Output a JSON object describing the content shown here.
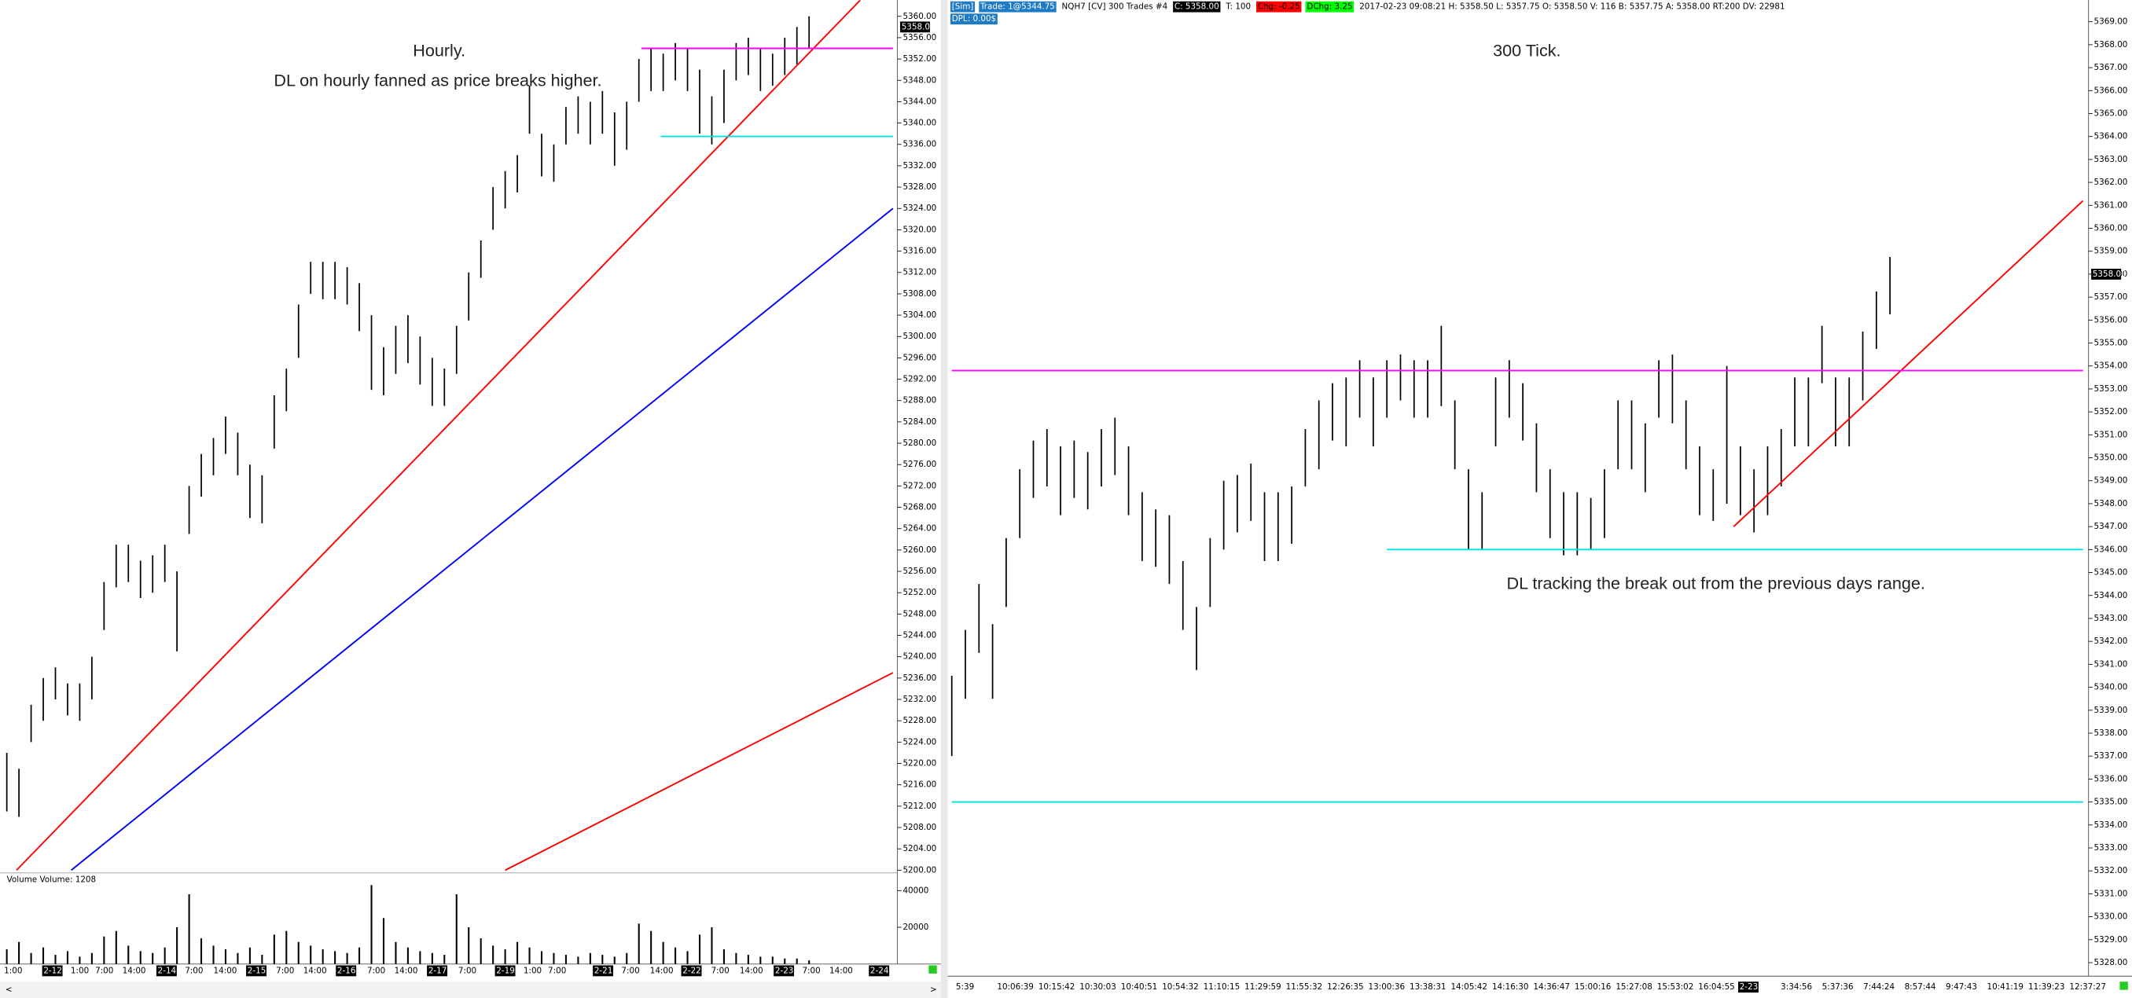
{
  "chart_data": [
    {
      "type": "ohlc",
      "title": "Hourly.",
      "subtitle": "DL on hourly fanned as price breaks higher.",
      "ylim": [
        5200,
        5360
      ],
      "yticks": [
        {
          "value": 5200,
          "label": "5200.00"
        },
        {
          "value": 5204,
          "label": "5204.00"
        },
        {
          "value": 5208,
          "label": "5208.00"
        },
        {
          "value": 5212,
          "label": "5212.00"
        },
        {
          "value": 5216,
          "label": "5216.00"
        },
        {
          "value": 5220,
          "label": "5220.00"
        },
        {
          "value": 5224,
          "label": "5224.00"
        },
        {
          "value": 5228,
          "label": "5228.00"
        },
        {
          "value": 5232,
          "label": "5232.00"
        },
        {
          "value": 5236,
          "label": "5236.00"
        },
        {
          "value": 5240,
          "label": "5240.00"
        },
        {
          "value": 5244,
          "label": "5244.00"
        },
        {
          "value": 5248,
          "label": "5248.00"
        },
        {
          "value": 5252,
          "label": "5252.00"
        },
        {
          "value": 5256,
          "label": "5256.00"
        },
        {
          "value": 5260,
          "label": "5260.00"
        },
        {
          "value": 5264,
          "label": "5264.00"
        },
        {
          "value": 5268,
          "label": "5268.00"
        },
        {
          "value": 5272,
          "label": "5272.00"
        },
        {
          "value": 5276,
          "label": "5276.00"
        },
        {
          "value": 5280,
          "label": "5280.00"
        },
        {
          "value": 5284,
          "label": "5284.00"
        },
        {
          "value": 5288,
          "label": "5288.00"
        },
        {
          "value": 5292,
          "label": "5292.00"
        },
        {
          "value": 5296,
          "label": "5296.00"
        },
        {
          "value": 5300,
          "label": "5300.00"
        },
        {
          "value": 5304,
          "label": "5304.00"
        },
        {
          "value": 5308,
          "label": "5308.00"
        },
        {
          "value": 5312,
          "label": "5312.00"
        },
        {
          "value": 5316,
          "label": "5316.00"
        },
        {
          "value": 5320,
          "label": "5320.00"
        },
        {
          "value": 5324,
          "label": "5324.00"
        },
        {
          "value": 5328,
          "label": "5328.00"
        },
        {
          "value": 5332,
          "label": "5332.00"
        },
        {
          "value": 5336,
          "label": "5336.00"
        },
        {
          "value": 5340,
          "label": "5340.00"
        },
        {
          "value": 5344,
          "label": "5344.00"
        },
        {
          "value": 5348,
          "label": "5348.00"
        },
        {
          "value": 5352,
          "label": "5352.00"
        },
        {
          "value": 5356,
          "label": "5356.00"
        },
        {
          "value": 5360,
          "label": "5360.00"
        }
      ],
      "x_ticks": [
        "1:00",
        "2-12",
        "1:00",
        "7:00",
        "14:00",
        "2-14",
        "7:00",
        "14:00",
        "2-15",
        "7:00",
        "14:00",
        "2-16",
        "7:00",
        "14:00",
        "2-17",
        "7:00",
        "2-19",
        "1:00",
        "7:00",
        "2-21",
        "7:00",
        "14:00",
        "2-22",
        "7:00",
        "14:00",
        "2-23",
        "7:00",
        "14:00",
        "2-24"
      ],
      "high": [
        5222,
        5219,
        5231,
        5236,
        5238,
        5235,
        5235,
        5240,
        5254,
        5261,
        5261,
        5258,
        5259,
        5261,
        5256,
        5272,
        5278,
        5281,
        5285,
        5282,
        5276,
        5274,
        5289,
        5294,
        5306,
        5314,
        5314,
        5314,
        5313,
        5310,
        5304,
        5298,
        5302,
        5304,
        5300,
        5296,
        5294,
        5302,
        5312,
        5318,
        5328,
        5331,
        5334,
        5347,
        5338,
        5336,
        5343,
        5345,
        5344,
        5346,
        5342,
        5344,
        5352,
        5354,
        5353,
        5355,
        5354,
        5350,
        5345,
        5350,
        5355,
        5356,
        5354,
        5353,
        5356,
        5358,
        5360
      ],
      "low": [
        5211,
        5210,
        5224,
        5228,
        5232,
        5229,
        5228,
        5232,
        5245,
        5253,
        5254,
        5251,
        5252,
        5254,
        5241,
        5263,
        5270,
        5274,
        5278,
        5274,
        5266,
        5265,
        5279,
        5286,
        5296,
        5308,
        5307,
        5307,
        5306,
        5301,
        5290,
        5289,
        5293,
        5295,
        5291,
        5287,
        5287,
        5293,
        5303,
        5311,
        5320,
        5324,
        5327,
        5338,
        5330,
        5329,
        5336,
        5338,
        5336,
        5338,
        5332,
        5335,
        5344,
        5346,
        5346,
        5348,
        5346,
        5338,
        5336,
        5340,
        5348,
        5349,
        5346,
        5347,
        5349,
        5351,
        5354
      ],
      "color": "#000000",
      "last_price": {
        "value": 5358,
        "label": "5358.00"
      },
      "trendlines": [
        {
          "color": "#ff0000",
          "x": [
            0.8,
            70.2
          ],
          "y": [
            5200,
            5363
          ]
        },
        {
          "color": "#0000ff",
          "x": [
            5.3,
            72.9
          ],
          "y": [
            5200,
            5324
          ]
        },
        {
          "color": "#ff0000",
          "x": [
            41,
            72.9
          ],
          "y": [
            5200,
            5237
          ]
        },
        {
          "color": "#ff00ff",
          "x": [
            52.2,
            72.9
          ],
          "y": [
            5354,
            5354
          ]
        },
        {
          "color": "#00e0e0",
          "x": [
            53.8,
            72.9
          ],
          "y": [
            5337.5,
            5337.5
          ]
        }
      ],
      "volume": {
        "label": "Volume  Volume: 1208",
        "vlim": [
          0,
          40000
        ],
        "vticks": [
          40000,
          20000
        ],
        "values": [
          8000,
          12000,
          6000,
          9000,
          5000,
          7000,
          4000,
          6000,
          15000,
          18000,
          10000,
          7000,
          6000,
          9000,
          20000,
          38000,
          14000,
          10000,
          8000,
          6000,
          9000,
          5000,
          16000,
          18000,
          12000,
          10000,
          8000,
          7000,
          6000,
          9000,
          43000,
          25000,
          12000,
          9000,
          7000,
          6000,
          5000,
          38000,
          20000,
          14000,
          10000,
          8000,
          12000,
          9000,
          7000,
          6000,
          5000,
          4000,
          6000,
          5000,
          4000,
          6000,
          22000,
          18000,
          12000,
          9000,
          7000,
          16000,
          20000,
          8000,
          6000,
          5000,
          4000,
          4000,
          3000,
          3000,
          2000
        ]
      }
    },
    {
      "type": "ohlc",
      "title": "300 Tick.",
      "annotation": "DL tracking the break out from the previous days range.",
      "header": [
        {
          "text": "[Sim]",
          "bg": "#1e7bc4"
        },
        {
          "text": "Trade: 1@5344.75",
          "bg": "#1e7bc4"
        },
        {
          "text": "NQH7 [CV]  300 Trades  #4"
        },
        {
          "text": "C: 5358.00",
          "bg": "#000000"
        },
        {
          "text": "T: 100"
        },
        {
          "text": "Chg: -0.25",
          "bg": "#ff0000"
        },
        {
          "text": "DChg: 3.25",
          "bg": "#00ff00"
        },
        {
          "text": "2017-02-23 09:08:21  H: 5358.50  L: 5357.75  O: 5358.50  V: 116  B: 5357.75  A: 5358.00  RT:200  DV: 22981"
        }
      ],
      "header_line2": {
        "text": "DPL: 0.00$",
        "bg": "#1e7bc4"
      },
      "ylim": [
        5328,
        5369
      ],
      "yticks": [
        {
          "value": 5328,
          "label": "5328.00"
        },
        {
          "value": 5329,
          "label": "5329.00"
        },
        {
          "value": 5330,
          "label": "5330.00"
        },
        {
          "value": 5331,
          "label": "5331.00"
        },
        {
          "value": 5332,
          "label": "5332.00"
        },
        {
          "value": 5333,
          "label": "5333.00"
        },
        {
          "value": 5334,
          "label": "5334.00"
        },
        {
          "value": 5335,
          "label": "5335.00"
        },
        {
          "value": 5336,
          "label": "5336.00"
        },
        {
          "value": 5337,
          "label": "5337.00"
        },
        {
          "value": 5338,
          "label": "5338.00"
        },
        {
          "value": 5339,
          "label": "5339.00"
        },
        {
          "value": 5340,
          "label": "5340.00"
        },
        {
          "value": 5341,
          "label": "5341.00"
        },
        {
          "value": 5342,
          "label": "5342.00"
        },
        {
          "value": 5343,
          "label": "5343.00"
        },
        {
          "value": 5344,
          "label": "5344.00"
        },
        {
          "value": 5345,
          "label": "5345.00"
        },
        {
          "value": 5346,
          "label": "5346.00"
        },
        {
          "value": 5347,
          "label": "5347.00"
        },
        {
          "value": 5348,
          "label": "5348.00"
        },
        {
          "value": 5349,
          "label": "5349.00"
        },
        {
          "value": 5350,
          "label": "5350.00"
        },
        {
          "value": 5351,
          "label": "5351.00"
        },
        {
          "value": 5352,
          "label": "5352.00"
        },
        {
          "value": 5353,
          "label": "5353.00"
        },
        {
          "value": 5354,
          "label": "5354.00"
        },
        {
          "value": 5355,
          "label": "5355.00"
        },
        {
          "value": 5356,
          "label": "5356.00"
        },
        {
          "value": 5357,
          "label": "5357.00"
        },
        {
          "value": 5358,
          "label": "5358.00"
        },
        {
          "value": 5359,
          "label": "5359.00"
        },
        {
          "value": 5360,
          "label": "5360.00"
        },
        {
          "value": 5361,
          "label": "5361.00"
        },
        {
          "value": 5362,
          "label": "5362.00"
        },
        {
          "value": 5363,
          "label": "5363.00"
        },
        {
          "value": 5364,
          "label": "5364.00"
        },
        {
          "value": 5365,
          "label": "5365.00"
        },
        {
          "value": 5366,
          "label": "5366.00"
        },
        {
          "value": 5367,
          "label": "5367.00"
        },
        {
          "value": 5368,
          "label": "5368.00"
        },
        {
          "value": 5369,
          "label": "5369.00"
        }
      ],
      "x_ticks": [
        "5:39",
        "10:06:39",
        "10:15:42",
        "10:30:03",
        "10:40:51",
        "10:54:32",
        "11:10:15",
        "11:29:59",
        "11:55:32",
        "12:26:35",
        "13:00:36",
        "13:38:31",
        "14:05:42",
        "14:16:30",
        "14:36:47",
        "15:00:16",
        "15:27:08",
        "15:53:02",
        "16:04:55",
        "2-23",
        "3:34:56",
        "5:37:36",
        "7:44:24",
        "8:57:44",
        "9:47:43",
        "10:41:19",
        "11:39:23",
        "12:37:27"
      ],
      "high": [
        5340.5,
        5342.5,
        5344.5,
        5342.75,
        5346.5,
        5349.5,
        5350.75,
        5351.25,
        5350.5,
        5350.75,
        5350.25,
        5351.25,
        5351.75,
        5350.5,
        5348.5,
        5347.75,
        5347.5,
        5345.5,
        5343.5,
        5346.5,
        5349,
        5349.25,
        5349.75,
        5348.5,
        5348.5,
        5348.75,
        5351.25,
        5352.5,
        5353.25,
        5353.5,
        5354.25,
        5353.5,
        5354.25,
        5354.5,
        5354.25,
        5354.25,
        5355.75,
        5352.5,
        5349.5,
        5348.5,
        5353.5,
        5354.25,
        5353.25,
        5351.5,
        5349.5,
        5348.5,
        5348.5,
        5348.25,
        5349.5,
        5352.5,
        5352.5,
        5351.5,
        5354.25,
        5354.5,
        5352.5,
        5350.5,
        5349.5,
        5354,
        5350.5,
        5349.5,
        5350.5,
        5351.25,
        5353.5,
        5353.5,
        5355.75,
        5353.5,
        5353.5,
        5355.5,
        5357.25,
        5358.75
      ],
      "low": [
        5337,
        5339.5,
        5341.5,
        5339.5,
        5343.5,
        5346.5,
        5348.25,
        5348.75,
        5347.5,
        5348.25,
        5347.75,
        5348.75,
        5349.25,
        5347.5,
        5345.5,
        5345.25,
        5344.5,
        5342.5,
        5340.75,
        5343.5,
        5346,
        5346.75,
        5347.25,
        5345.5,
        5345.5,
        5346.25,
        5348.75,
        5349.5,
        5350.75,
        5350.5,
        5351.75,
        5350.5,
        5351.75,
        5352.5,
        5351.75,
        5351.75,
        5352.25,
        5349.5,
        5346,
        5346,
        5350.5,
        5351.75,
        5350.75,
        5348.5,
        5346.5,
        5345.75,
        5345.75,
        5346,
        5346.5,
        5349.5,
        5349.5,
        5348.5,
        5351.75,
        5351.5,
        5349.5,
        5347.5,
        5347.25,
        5348,
        5347.5,
        5346.75,
        5347.5,
        5348.75,
        5350.5,
        5350.5,
        5353.25,
        5350.5,
        5350.5,
        5352.5,
        5354.75,
        5356.25
      ],
      "color": "#000000",
      "last_price": {
        "value": 5358,
        "label": "5358.00"
      },
      "trendlines": [
        {
          "color": "#ff0000",
          "x": [
            57.5,
            83.2
          ],
          "y": [
            5347,
            5361.2
          ]
        },
        {
          "color": "#ff00ff",
          "x": [
            0,
            83.2
          ],
          "y": [
            5353.8,
            5353.8
          ]
        },
        {
          "color": "#00e0e0",
          "x": [
            32,
            83.2
          ],
          "y": [
            5346,
            5346
          ]
        },
        {
          "color": "#00e0e0",
          "x": [
            0,
            83.2
          ],
          "y": [
            5335,
            5335
          ]
        }
      ]
    }
  ]
}
